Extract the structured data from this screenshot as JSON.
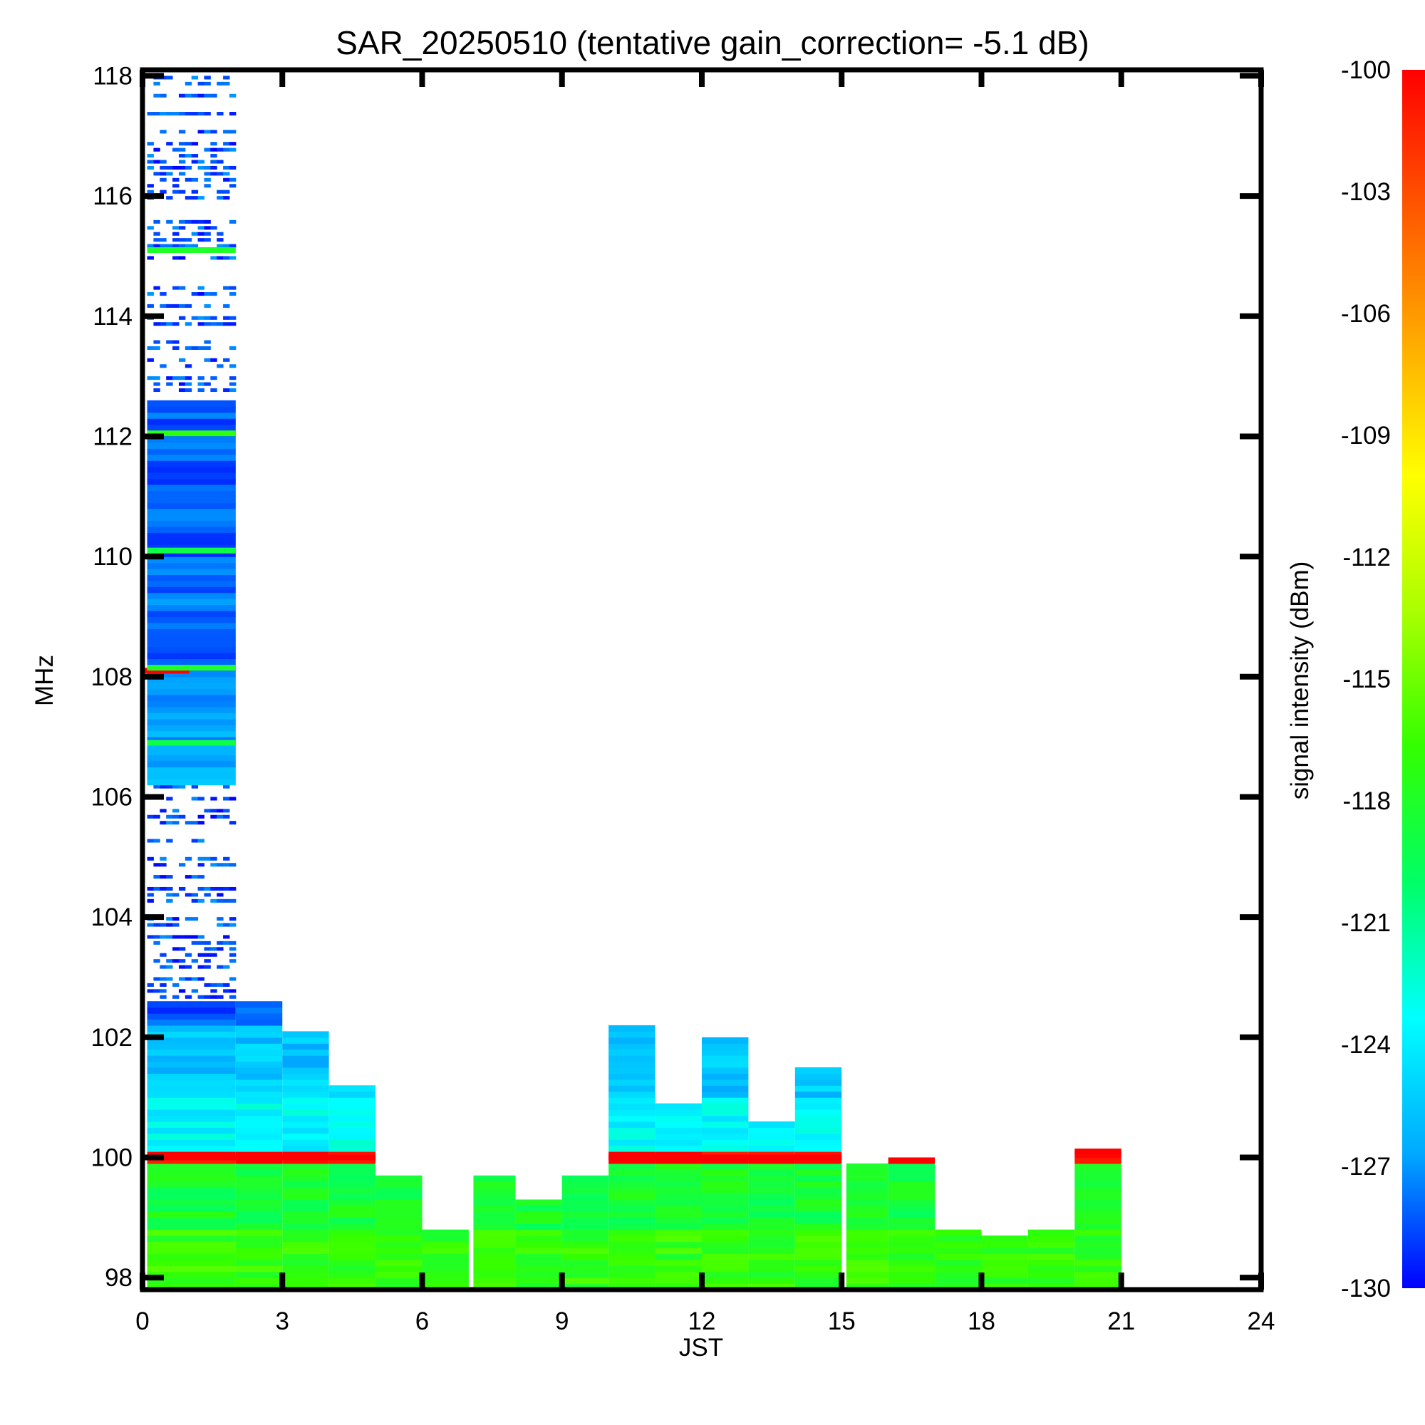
{
  "chart_data": {
    "type": "heatmap",
    "title": "SAR_20250510 (tentative gain_correction= -5.1 dB)",
    "xlabel": "JST",
    "ylabel": "MHz",
    "colorbar_label": "signal intensity (dBm)",
    "xlim": [
      0,
      24
    ],
    "ylim": [
      97.8,
      118.1
    ],
    "xticks": [
      "0",
      "3",
      "6",
      "9",
      "12",
      "15",
      "18",
      "21",
      "24"
    ],
    "yticks": [
      "98",
      "100",
      "102",
      "104",
      "106",
      "108",
      "110",
      "112",
      "114",
      "116",
      "118"
    ],
    "colorbar": {
      "range": [
        -130,
        -100
      ],
      "ticks": [
        "-100",
        "-103",
        "-106",
        "-109",
        "-112",
        "-115",
        "-118",
        "-121",
        "-124",
        "-127",
        "-130"
      ],
      "colors": [
        "#0000ff",
        "#00aaff",
        "#00ffff",
        "#00ff66",
        "#33ff00",
        "#aaff00",
        "#ffff00",
        "#ffaa00",
        "#ff5500",
        "#ff0000"
      ]
    },
    "coverage": [
      {
        "t0": 0.1,
        "t1": 2.0,
        "f_top": 118.1
      },
      {
        "t0": 2.0,
        "t1": 3.0,
        "f_top": 102.6
      },
      {
        "t0": 3.0,
        "t1": 4.0,
        "f_top": 102.1
      },
      {
        "t0": 4.0,
        "t1": 5.0,
        "f_top": 101.2
      },
      {
        "t0": 5.0,
        "t1": 6.0,
        "f_top": 99.7
      },
      {
        "t0": 6.0,
        "t1": 7.0,
        "f_top": 98.8
      },
      {
        "t0": 7.1,
        "t1": 8.0,
        "f_top": 99.7
      },
      {
        "t0": 8.0,
        "t1": 9.0,
        "f_top": 99.3
      },
      {
        "t0": 9.0,
        "t1": 10.0,
        "f_top": 99.7
      },
      {
        "t0": 10.0,
        "t1": 11.0,
        "f_top": 102.2
      },
      {
        "t0": 11.0,
        "t1": 12.0,
        "f_top": 100.9
      },
      {
        "t0": 12.0,
        "t1": 13.0,
        "f_top": 102.0
      },
      {
        "t0": 13.0,
        "t1": 14.0,
        "f_top": 100.6
      },
      {
        "t0": 14.0,
        "t1": 15.0,
        "f_top": 101.5
      },
      {
        "t0": 15.1,
        "t1": 16.0,
        "f_top": 99.9
      },
      {
        "t0": 16.0,
        "t1": 17.0,
        "f_top": 100.0
      },
      {
        "t0": 17.0,
        "t1": 18.0,
        "f_top": 98.8
      },
      {
        "t0": 18.0,
        "t1": 19.0,
        "f_top": 98.7
      },
      {
        "t0": 19.0,
        "t1": 20.0,
        "f_top": 98.8
      },
      {
        "t0": 20.0,
        "t1": 21.0,
        "f_top": 100.1
      }
    ],
    "bands": [
      {
        "f0": 97.8,
        "f1": 98.8,
        "dbm": -117
      },
      {
        "f0": 98.8,
        "f1": 99.9,
        "dbm": -118.5
      },
      {
        "f0": 99.9,
        "f1": 100.1,
        "dbm": -100
      },
      {
        "f0": 100.1,
        "f1": 101.0,
        "dbm": -123.5
      },
      {
        "f0": 101.0,
        "f1": 102.2,
        "dbm": -125.5
      },
      {
        "f0": 102.2,
        "f1": 102.6,
        "dbm": -128.5
      },
      {
        "f0": 102.6,
        "f1": 106.2,
        "dbm": -130,
        "sparse": true
      },
      {
        "f0": 106.2,
        "f1": 108.2,
        "dbm": -126.5
      },
      {
        "f0": 108.2,
        "f1": 112.6,
        "dbm": -128
      },
      {
        "f0": 112.6,
        "f1": 118.1,
        "dbm": -130,
        "sparse": true
      }
    ],
    "strong_lines": [
      {
        "freq": 100.0,
        "t0": 0.1,
        "t1": 5.0,
        "dbm": -100
      },
      {
        "freq": 100.0,
        "t0": 10.0,
        "t1": 15.0,
        "dbm": -100
      },
      {
        "freq": 100.1,
        "t0": 20.0,
        "t1": 21.0,
        "dbm": -100
      },
      {
        "freq": 108.1,
        "t0": 0.0,
        "t1": 1.0,
        "dbm": -100
      },
      {
        "freq": 112.05,
        "t0": 0.1,
        "t1": 2.0,
        "dbm": -117
      },
      {
        "freq": 115.1,
        "t0": 0.1,
        "t1": 2.0,
        "dbm": -118
      },
      {
        "freq": 110.1,
        "t0": 0.1,
        "t1": 2.0,
        "dbm": -119
      },
      {
        "freq": 108.15,
        "t0": 0.1,
        "t1": 2.0,
        "dbm": -118
      },
      {
        "freq": 106.9,
        "t0": 0.1,
        "t1": 2.0,
        "dbm": -119
      }
    ]
  }
}
